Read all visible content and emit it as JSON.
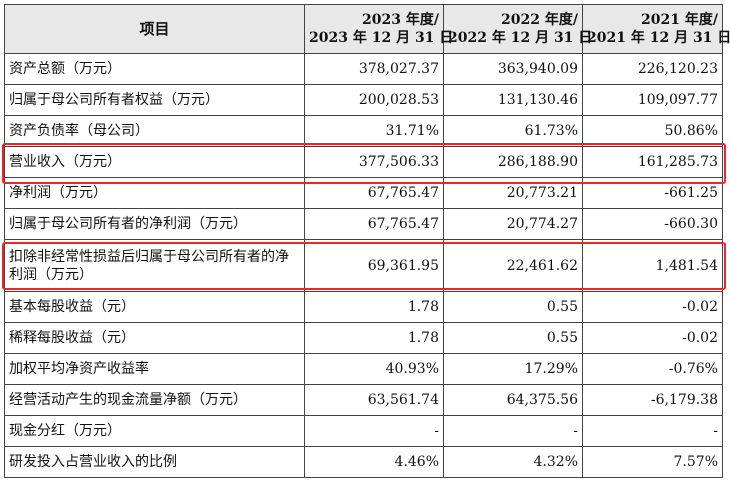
{
  "table": {
    "header": {
      "item": "项目",
      "columns": [
        {
          "line1": "2023 年度/",
          "line2": "2023 年 12 月 31 日"
        },
        {
          "line1": "2022 年度/",
          "line2": "2022 年 12 月 31 日"
        },
        {
          "line1": "2021 年度/",
          "line2": "2021 年 12 月 31 日"
        }
      ]
    },
    "rows": [
      {
        "label": "资产总额（万元）",
        "values": [
          "378,027.37",
          "363,940.09",
          "226,120.23"
        ]
      },
      {
        "label": "归属于母公司所有者权益（万元）",
        "values": [
          "200,028.53",
          "131,130.46",
          "109,097.77"
        ]
      },
      {
        "label": "资产负债率（母公司）",
        "values": [
          "31.71%",
          "61.73%",
          "50.86%"
        ]
      },
      {
        "label": "营业收入（万元）",
        "values": [
          "377,506.33",
          "286,188.90",
          "161,285.73"
        ]
      },
      {
        "label": "净利润（万元）",
        "values": [
          "67,765.47",
          "20,773.21",
          "-661.25"
        ]
      },
      {
        "label": "归属于母公司所有者的净利润（万元）",
        "values": [
          "67,765.47",
          "20,774.27",
          "-660.30"
        ]
      },
      {
        "label": "扣除非经常性损益后归属于母公司所有者的净利润（万元）",
        "values": [
          "69,361.95",
          "22,461.62",
          "1,481.54"
        ]
      },
      {
        "label": "基本每股收益（元）",
        "values": [
          "1.78",
          "0.55",
          "-0.02"
        ]
      },
      {
        "label": "稀释每股收益（元）",
        "values": [
          "1.78",
          "0.55",
          "-0.02"
        ]
      },
      {
        "label": "加权平均净资产收益率",
        "values": [
          "40.93%",
          "17.29%",
          "-0.76%"
        ]
      },
      {
        "label": "经营活动产生的现金流量净额（万元）",
        "values": [
          "63,561.74",
          "64,375.56",
          "-6,179.38"
        ]
      },
      {
        "label": "现金分红（万元）",
        "values": [
          "-",
          "-",
          "-"
        ]
      },
      {
        "label": "研发投入占营业收入的比例",
        "values": [
          "4.46%",
          "4.32%",
          "7.57%"
        ]
      }
    ]
  },
  "highlight_color": "#e8262b"
}
